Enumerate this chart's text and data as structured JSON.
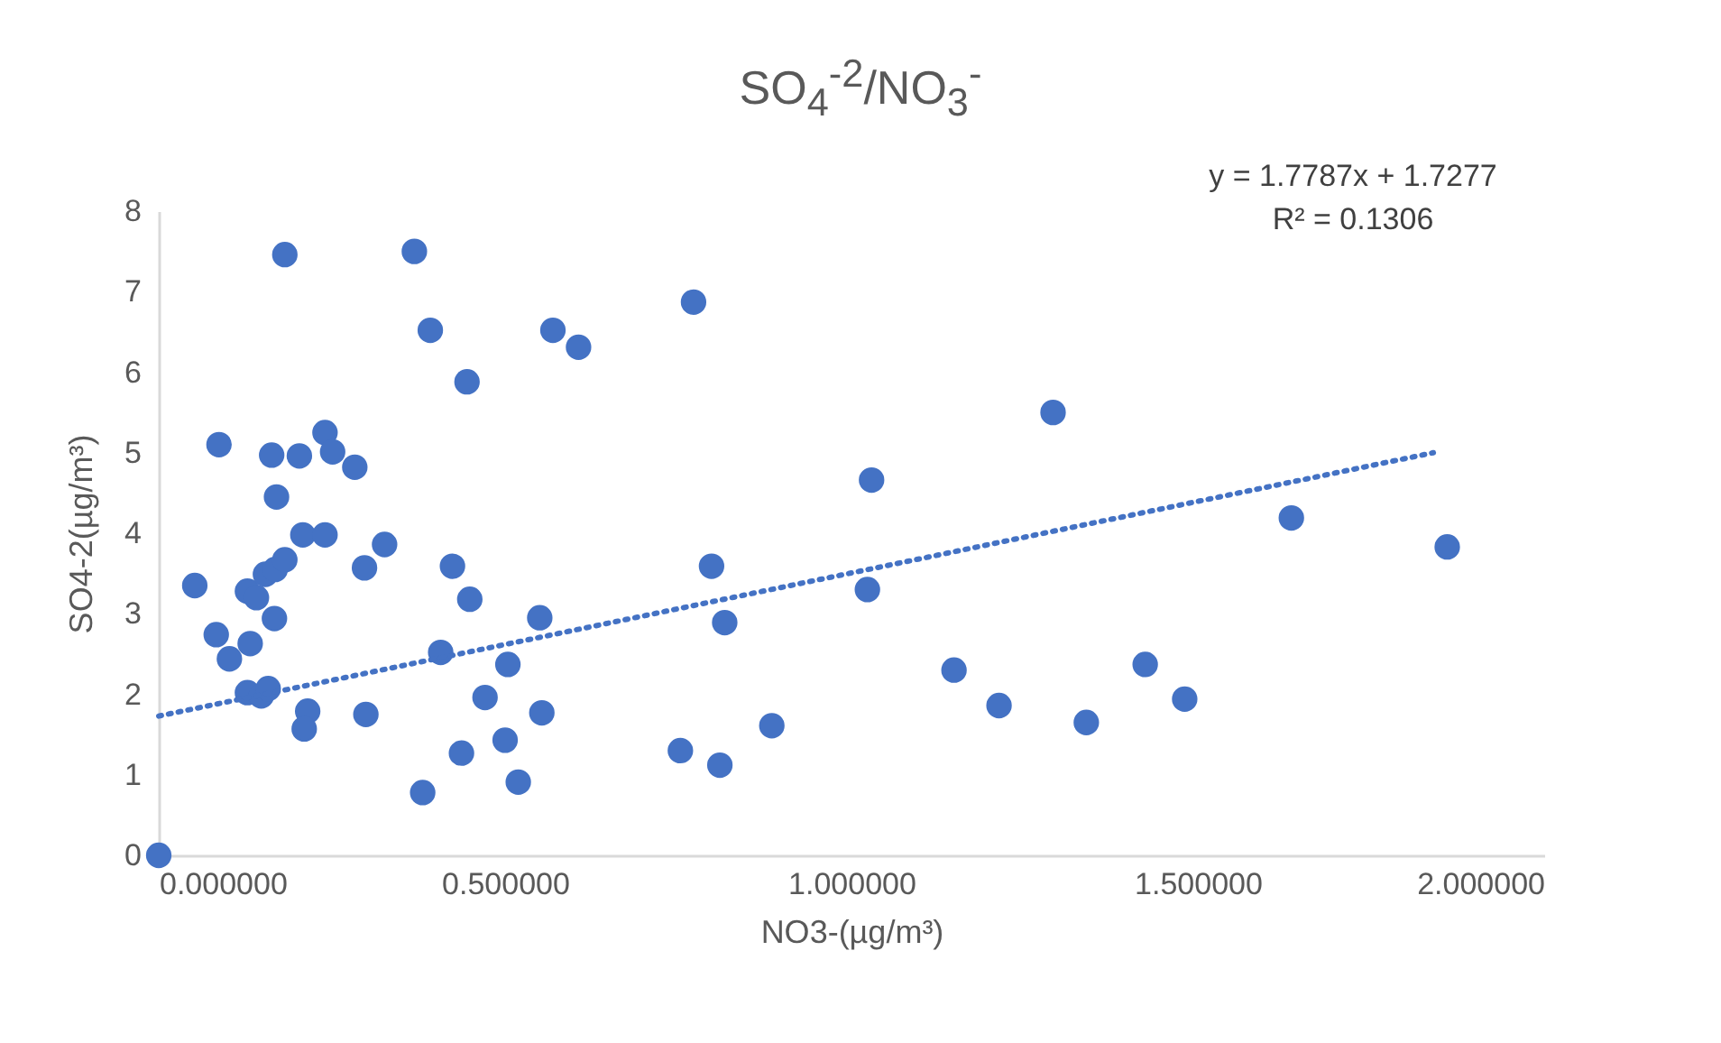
{
  "chart_data": {
    "type": "scatter",
    "title": "SO$_{4}$$^{-2}$/NO$_{3}$$^{-}$",
    "xlabel": "NO3-(µg/m³)",
    "ylabel": "SO4-2(µg/m³)",
    "annotations": [
      "y = 1.7787x + 1.7277",
      "R² = 0.1306"
    ],
    "xlim": [
      0,
      2
    ],
    "ylim": [
      0,
      8
    ],
    "xticks": [
      {
        "value": 0,
        "label": "0.000000"
      },
      {
        "value": 0.5,
        "label": "0.500000"
      },
      {
        "value": 1,
        "label": "1.000000"
      },
      {
        "value": 1.5,
        "label": "1.500000"
      },
      {
        "value": 2,
        "label": "2.000000"
      }
    ],
    "yticks": [
      0,
      1,
      2,
      3,
      4,
      5,
      6,
      7,
      8
    ],
    "grid": false,
    "marker": "circle",
    "series": [
      {
        "color": "#4472c4",
        "x": [
          0,
          0.052,
          0.087,
          0.083,
          0.102,
          0.132,
          0.128,
          0.141,
          0.128,
          0.148,
          0.158,
          0.154,
          0.168,
          0.182,
          0.167,
          0.163,
          0.17,
          0.182,
          0.203,
          0.208,
          0.24,
          0.24,
          0.251,
          0.283,
          0.215,
          0.21,
          0.297,
          0.299,
          0.326,
          0.369,
          0.392,
          0.381,
          0.407,
          0.424,
          0.445,
          0.449,
          0.437,
          0.471,
          0.504,
          0.5,
          0.519,
          0.55,
          0.553,
          0.569,
          0.606,
          0.772,
          0.798,
          0.817,
          0.753,
          0.81,
          0.885,
          1.029,
          1.023,
          1.148,
          1.213,
          1.291,
          1.424,
          1.481,
          1.339,
          1.635,
          1.86
        ],
        "values": [
          0,
          3.35,
          5.1,
          2.74,
          2.44,
          2.63,
          3.28,
          3.2,
          2.02,
          1.98,
          2.07,
          3.49,
          3.55,
          3.67,
          2.94,
          4.97,
          4.45,
          7.46,
          4.96,
          3.98,
          3.98,
          5.25,
          5.01,
          4.82,
          1.79,
          1.57,
          3.57,
          1.75,
          3.86,
          7.5,
          6.52,
          0.78,
          2.52,
          3.59,
          5.88,
          3.18,
          1.27,
          1.96,
          2.37,
          1.43,
          0.91,
          2.95,
          1.77,
          6.52,
          6.31,
          6.87,
          3.59,
          2.89,
          1.3,
          1.12,
          1.61,
          4.66,
          3.3,
          2.3,
          1.86,
          5.5,
          2.37,
          1.94,
          1.65,
          4.19,
          3.83
        ]
      },
      {
        "type": "line",
        "color": "#4472c4",
        "line_style": "dotted",
        "marker": "none",
        "x": [
          0,
          1.84
        ],
        "values": [
          1.73,
          5.0
        ]
      }
    ]
  }
}
